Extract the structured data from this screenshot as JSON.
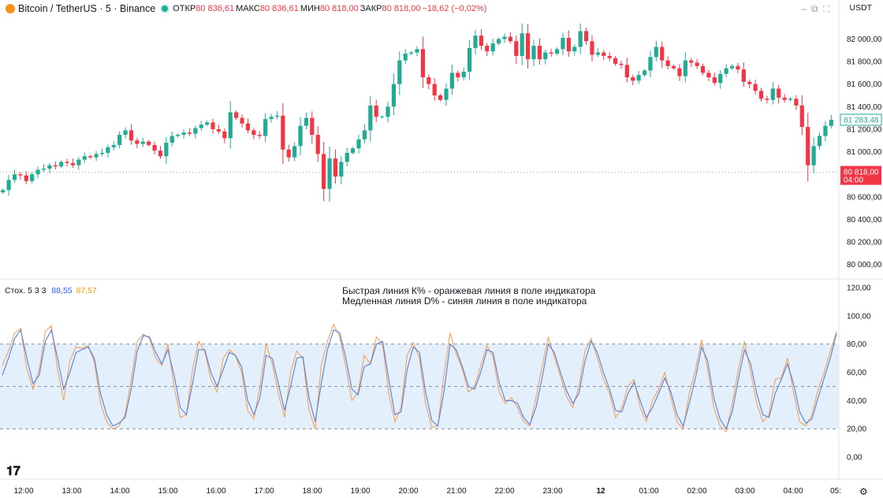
{
  "header": {
    "symbol": "Bitcoin / TetherUS · 5 · Binance",
    "open_label": "ОТКР",
    "open_value": "80 836,61",
    "high_label": "МАКС",
    "high_value": "80 836,61",
    "low_label": "МИН",
    "low_value": "80 818,00",
    "close_label": "ЗАКР",
    "close_value": "80 818,00",
    "change": "−18,62 (−0,02%)",
    "currency": "USDT"
  },
  "colors": {
    "up": "#22ab94",
    "down": "#f23645",
    "k_line": "#f5a05a",
    "d_line": "#5b7fd6",
    "band": "#e3f0fb",
    "text": "#131722"
  },
  "icons": [
    "bitcoin-logo-icon",
    "market-open-dot-icon",
    "minimize-icon",
    "restore-icon",
    "maximize-icon",
    "tradingview-logo-icon",
    "settings-icon"
  ],
  "price_panel": {
    "y_ticks": [
      "82 000,00",
      "81 800,00",
      "81 600,00",
      "81 400,00",
      "81 200,00",
      "81 000,00",
      "80 800,00",
      "80 600,00",
      "80 400,00",
      "80 200,00",
      "80 000,00"
    ],
    "last_price": "81 283,48",
    "ref_price_label": "80 818,00",
    "ref_countdown": "04:00"
  },
  "stoch_panel": {
    "label": "Стох. 5 3 3",
    "k_value": "88,55",
    "d_value": "87,57",
    "y_ticks": [
      "120,00",
      "100,00",
      "80,00",
      "60,00",
      "40,00",
      "20,00",
      "0,00"
    ],
    "annotation_line1": "Быстрая линия К% - оранжевая линия в поле индикатора",
    "annotation_line2": "Медленная линия D% - синяя линия в поле индикатора"
  },
  "x_ticks": [
    "12:00",
    "13:00",
    "14:00",
    "15:00",
    "16:00",
    "17:00",
    "18:00",
    "19:00",
    "20:00",
    "21:00",
    "22:00",
    "23:00",
    "12",
    "01:00",
    "02:00",
    "03:00",
    "04:00",
    "05:"
  ],
  "chart_data": [
    {
      "type": "candlestick",
      "title": "Bitcoin / TetherUS · 5 · Binance",
      "ylim": [
        79900,
        82150
      ],
      "close": [
        80660,
        80750,
        80800,
        80790,
        80740,
        80800,
        80840,
        80850,
        80880,
        80870,
        80910,
        80900,
        80880,
        80930,
        80960,
        80950,
        80980,
        80990,
        81040,
        81060,
        81150,
        81190,
        81100,
        81070,
        81090,
        81060,
        81010,
        80960,
        81080,
        81140,
        81150,
        81170,
        81160,
        81210,
        81240,
        81260,
        81200,
        81180,
        81120,
        81350,
        81300,
        81250,
        81190,
        81150,
        81140,
        81290,
        81310,
        81320,
        81020,
        80950,
        81050,
        81230,
        81300,
        81150,
        80980,
        80670,
        80940,
        80780,
        80910,
        80990,
        81030,
        81110,
        81190,
        81410,
        81310,
        81310,
        81400,
        81600,
        81810,
        81870,
        81880,
        81910,
        81660,
        81600,
        81500,
        81460,
        81560,
        81700,
        81660,
        81710,
        81920,
        82030,
        81940,
        81890,
        81960,
        82000,
        82020,
        81980,
        81850,
        82050,
        81820,
        81940,
        81820,
        81880,
        81870,
        81910,
        82010,
        81890,
        81930,
        82070,
        81980,
        81860,
        81880,
        81850,
        81830,
        81780,
        81770,
        81660,
        81630,
        81680,
        81720,
        81840,
        81930,
        81810,
        81760,
        81740,
        81670,
        81810,
        81790,
        81760,
        81700,
        81660,
        81610,
        81690,
        81740,
        81760,
        81730,
        81620,
        81600,
        81540,
        81470,
        81460,
        81560,
        81480,
        81460,
        81470,
        81410,
        81220,
        80880,
        81050,
        81140,
        81230,
        81283.48
      ],
      "annotation": "Быстрая линия К% - оранжевая линия в поле индикатора / Медленная линия D% - синяя линия в поле индикатора"
    },
    {
      "type": "line",
      "title": "Стох. 5 3 3",
      "ylim": [
        -10,
        125
      ],
      "y_ticks": [
        0,
        20,
        40,
        60,
        80,
        100,
        120
      ],
      "levels": [
        20,
        50,
        80
      ],
      "series": [
        {
          "name": "K%",
          "values": [
            65,
            75,
            88,
            91,
            62,
            48,
            62,
            89,
            93,
            62,
            40,
            68,
            78,
            77,
            79,
            67,
            38,
            25,
            20,
            22,
            30,
            55,
            82,
            87,
            84,
            70,
            65,
            80,
            50,
            28,
            30,
            62,
            82,
            75,
            55,
            46,
            70,
            76,
            72,
            60,
            33,
            27,
            50,
            80,
            66,
            45,
            28,
            60,
            75,
            70,
            33,
            20,
            65,
            82,
            94,
            85,
            64,
            40,
            46,
            72,
            66,
            85,
            80,
            45,
            25,
            35,
            72,
            81,
            70,
            38,
            21,
            22,
            58,
            88,
            73,
            62,
            46,
            50,
            65,
            79,
            71,
            46,
            38,
            42,
            35,
            25,
            22,
            42,
            64,
            85,
            71,
            57,
            43,
            35,
            50,
            75,
            84,
            70,
            55,
            45,
            28,
            35,
            50,
            55,
            35,
            25,
            40,
            48,
            60,
            42,
            25,
            20,
            45,
            62,
            83,
            62,
            35,
            22,
            18,
            38,
            62,
            82,
            60,
            38,
            25,
            30,
            55,
            56,
            70,
            46,
            25,
            22,
            30,
            48,
            60,
            75,
            88.55
          ]
        },
        {
          "name": "D%",
          "values": [
            58,
            70,
            84,
            90,
            70,
            52,
            58,
            82,
            90,
            70,
            48,
            60,
            74,
            76,
            78,
            70,
            45,
            30,
            22,
            24,
            28,
            48,
            75,
            86,
            85,
            74,
            66,
            76,
            58,
            35,
            30,
            52,
            76,
            76,
            60,
            50,
            62,
            74,
            72,
            64,
            40,
            30,
            42,
            72,
            70,
            52,
            33,
            50,
            70,
            71,
            42,
            25,
            52,
            76,
            90,
            88,
            70,
            48,
            44,
            64,
            66,
            80,
            82,
            55,
            30,
            32,
            62,
            78,
            74,
            46,
            26,
            22,
            46,
            80,
            76,
            64,
            50,
            48,
            60,
            76,
            74,
            53,
            40,
            40,
            38,
            28,
            23,
            35,
            56,
            80,
            74,
            60,
            47,
            38,
            45,
            68,
            82,
            74,
            60,
            48,
            33,
            32,
            45,
            53,
            40,
            28,
            35,
            45,
            56,
            46,
            30,
            22,
            38,
            56,
            78,
            68,
            42,
            27,
            20,
            32,
            55,
            76,
            66,
            45,
            30,
            28,
            45,
            55,
            66,
            52,
            32,
            24,
            27,
            42,
            56,
            70,
            87.57
          ]
        }
      ],
      "annotation": "Быстрая линия К% - оранжевая линия в поле индикатора / Медленная линия D% - синяя линия в поле индикатора"
    }
  ]
}
